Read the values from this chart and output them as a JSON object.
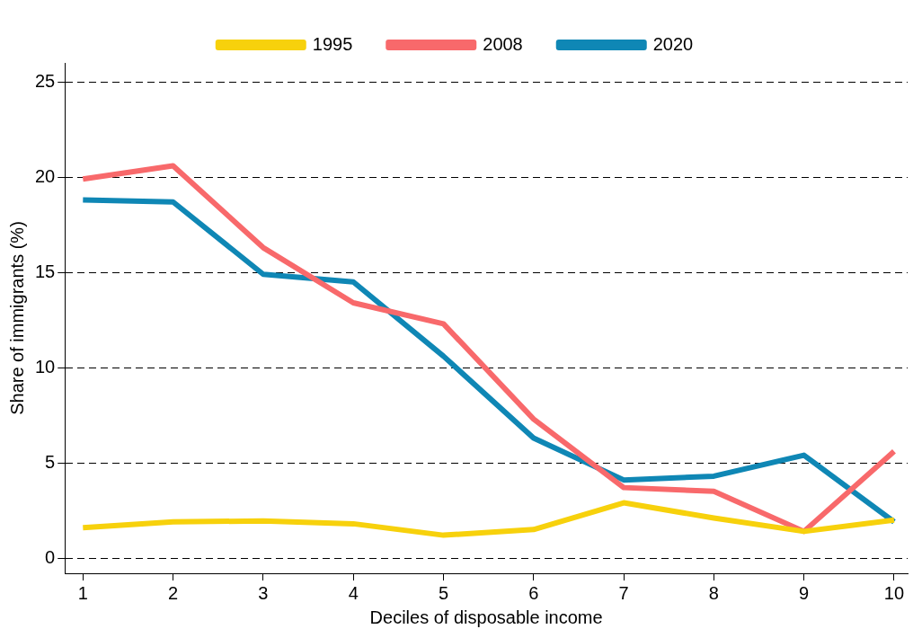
{
  "chart_data": {
    "type": "line",
    "xlabel": "Deciles of disposable income",
    "ylabel": "Share of immigrants (%)",
    "x": [
      1,
      2,
      3,
      4,
      5,
      6,
      7,
      8,
      9,
      10
    ],
    "series": [
      {
        "name": "1995",
        "color": "#f7d10c",
        "values": [
          1.6,
          1.9,
          1.95,
          1.8,
          1.2,
          1.5,
          2.9,
          2.1,
          1.4,
          2.0
        ]
      },
      {
        "name": "2008",
        "color": "#f8696b",
        "values": [
          19.9,
          20.6,
          16.3,
          13.4,
          12.3,
          7.3,
          3.7,
          3.5,
          1.4,
          5.6
        ]
      },
      {
        "name": "2020",
        "color": "#0f87b5",
        "values": [
          18.8,
          18.7,
          14.9,
          14.5,
          10.6,
          6.3,
          4.1,
          4.3,
          5.4,
          1.9
        ]
      }
    ],
    "xlim": [
      0.8,
      10.15
    ],
    "xticks": [
      1,
      2,
      3,
      4,
      5,
      6,
      7,
      8,
      9,
      10
    ],
    "ylim": [
      -0.8,
      26
    ],
    "yticks": [
      0,
      5,
      10,
      15,
      20,
      25
    ],
    "grid": "y",
    "legend": "top",
    "marker": "none",
    "line_style": "solid"
  }
}
